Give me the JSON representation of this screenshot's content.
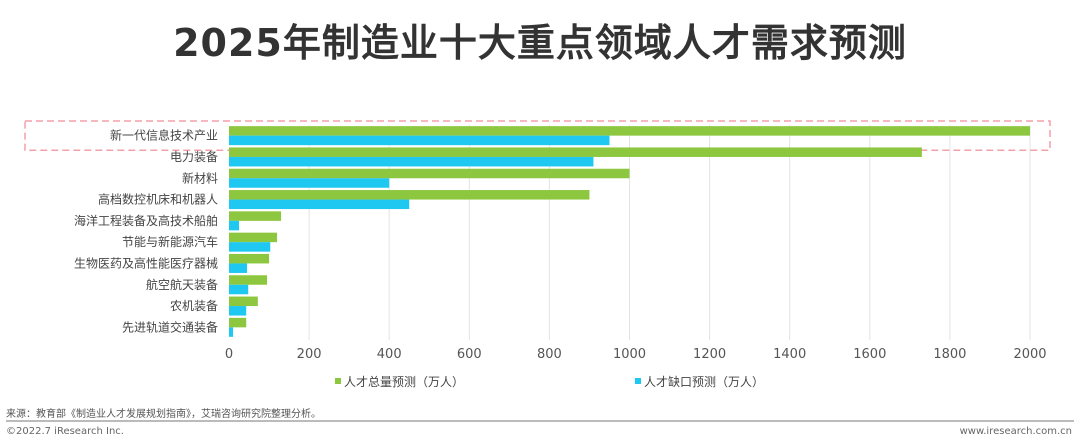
{
  "chart_data": {
    "type": "bar",
    "orientation": "horizontal",
    "title": "2025年制造业十大重点领域人才需求预测",
    "categories": [
      "新一代信息技术产业",
      "电力装备",
      "新材料",
      "高档数控机床和机器人",
      "海洋工程装备及高技术船舶",
      "节能与新能源汽车",
      "生物医药及高性能医疗器械",
      "航空航天装备",
      "农机装备",
      "先进轨道交通装备"
    ],
    "series": [
      {
        "name": "人才总量预测（万人）",
        "color": "#8dc63f",
        "values": [
          2000,
          1730,
          1000,
          900,
          130,
          120,
          100,
          95,
          72,
          43
        ]
      },
      {
        "name": "人才缺口预测（万人）",
        "color": "#1fc8f0",
        "values": [
          950,
          910,
          400,
          450,
          25,
          103,
          45,
          48,
          43,
          10
        ]
      }
    ],
    "xlim": [
      0,
      2000
    ],
    "xticks": [
      0,
      200,
      400,
      600,
      800,
      1000,
      1200,
      1400,
      1600,
      1800,
      2000
    ],
    "grid": true,
    "legend_position": "bottom",
    "highlight_category": "新一代信息技术产业"
  },
  "footer": {
    "source": "来源：教育部《制造业人才发展规划指南》，艾瑞咨询研究院整理分析。",
    "copyright": "©2022.7 iResearch Inc.",
    "url": "www.iresearch.com.cn"
  }
}
